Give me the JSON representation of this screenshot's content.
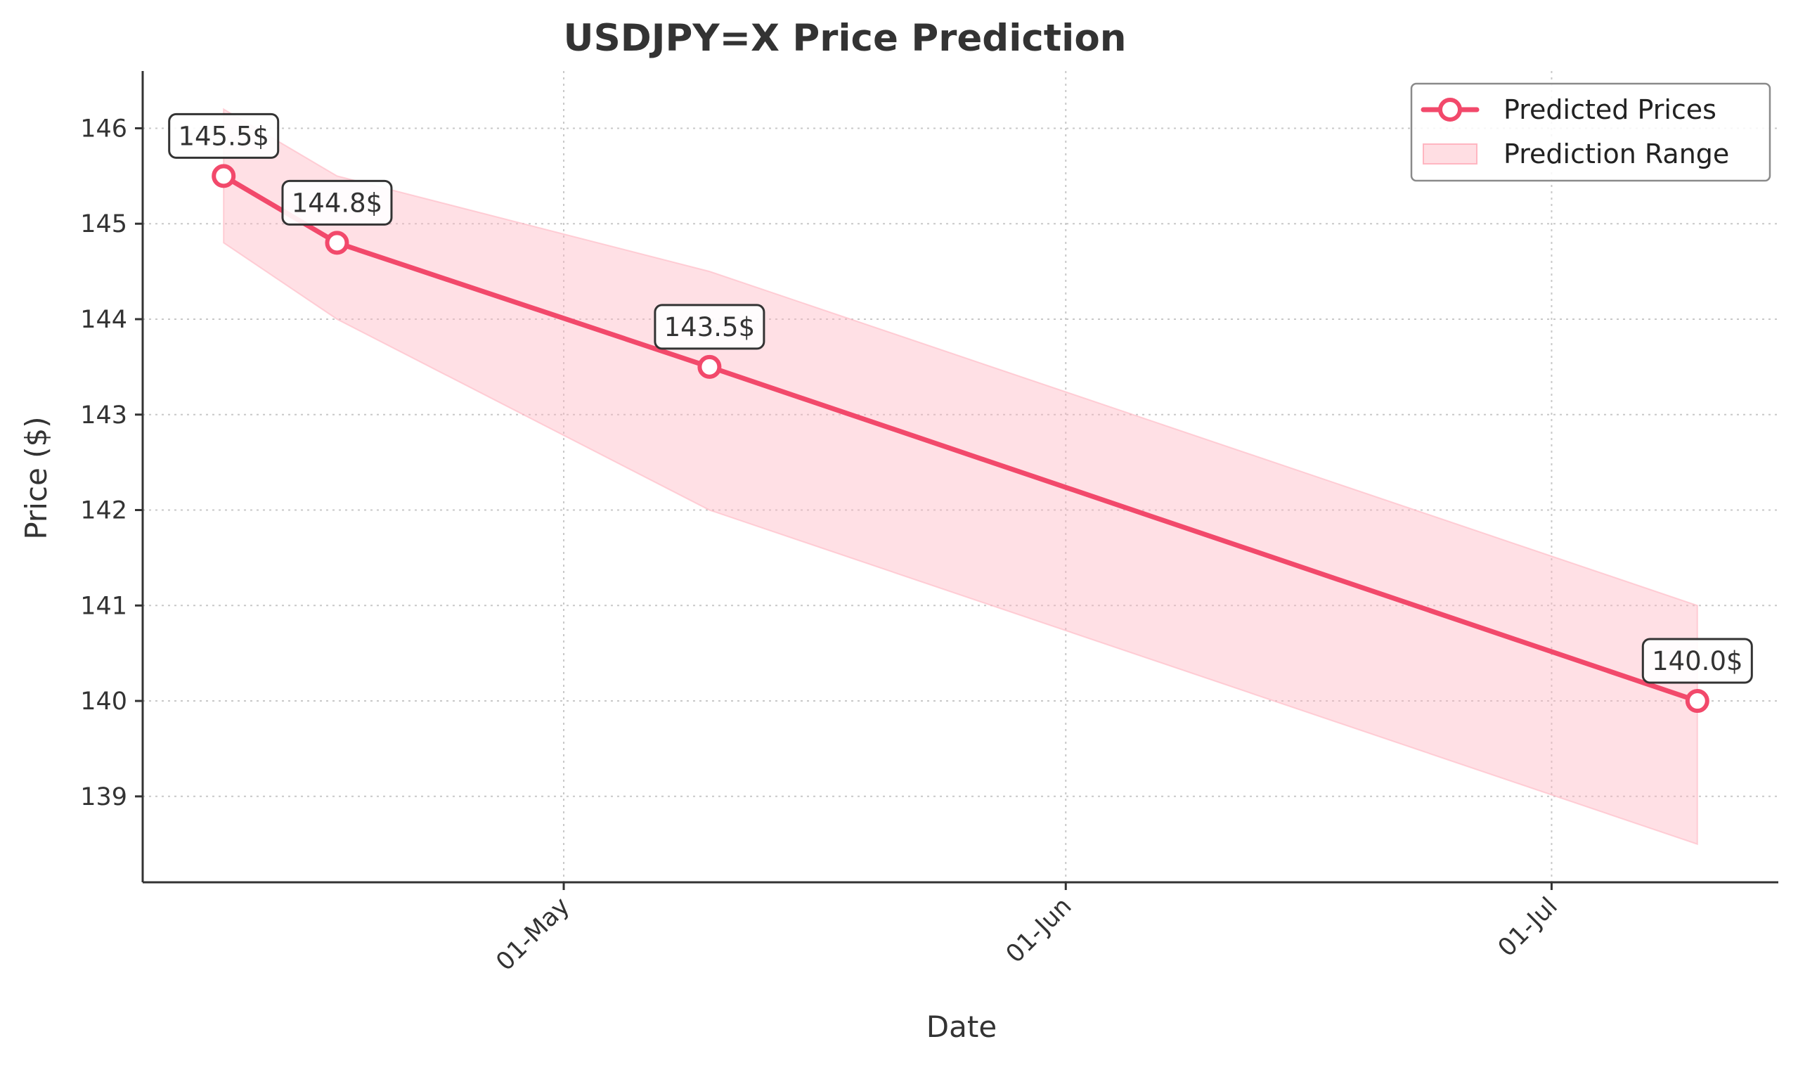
{
  "chart_data": {
    "type": "line",
    "title": "USDJPY=X Price Prediction",
    "xlabel": "Date",
    "ylabel": "Price ($)",
    "x_tick_labels": [
      "01-May",
      "01-Jun",
      "01-Jul"
    ],
    "x_tick_dates": [
      "2025-05-01",
      "2025-06-01",
      "2025-07-01"
    ],
    "y_ticks": [
      139,
      140,
      141,
      142,
      143,
      144,
      145,
      146
    ],
    "y_tick_labels": [
      "139",
      "140",
      "141",
      "142",
      "143",
      "144",
      "145",
      "146"
    ],
    "xlim": [
      "2025-04-05",
      "2025-07-15"
    ],
    "ylim": [
      138.1,
      146.6
    ],
    "grid": true,
    "legend_position": "top-right",
    "series": [
      {
        "name": "Predicted Prices",
        "color": "#f2496b",
        "x": [
          "2025-04-10",
          "2025-04-17",
          "2025-05-10",
          "2025-07-10"
        ],
        "values": [
          145.5,
          144.8,
          143.5,
          140.0
        ],
        "labels": [
          "145.5$",
          "144.8$",
          "143.5$",
          "140.0$"
        ]
      },
      {
        "name": "Prediction Range",
        "color": "#ffb6c1",
        "type": "range",
        "x": [
          "2025-04-10",
          "2025-04-17",
          "2025-05-10",
          "2025-07-10"
        ],
        "upper": [
          146.2,
          145.5,
          144.5,
          141.0
        ],
        "lower": [
          144.8,
          144.0,
          142.0,
          138.5
        ]
      }
    ]
  }
}
